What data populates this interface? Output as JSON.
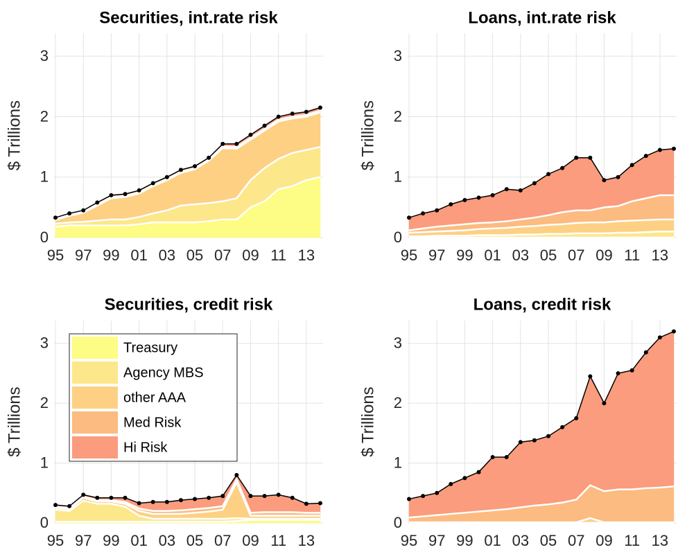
{
  "chart_data": [
    {
      "type": "stacked-area",
      "title": "Securities, int.rate risk",
      "y_label": "$ Trillions",
      "x": [
        1995,
        1996,
        1997,
        1998,
        1999,
        2000,
        2001,
        2002,
        2003,
        2004,
        2005,
        2006,
        2007,
        2008,
        2009,
        2010,
        2011,
        2012,
        2013,
        2014
      ],
      "xlim": [
        1994.9,
        2014.2
      ],
      "ylim": [
        0,
        3.38
      ],
      "xticks": [
        {
          "value": 1995,
          "label": "95"
        },
        {
          "value": 1997,
          "label": "97"
        },
        {
          "value": 1999,
          "label": "99"
        },
        {
          "value": 2001,
          "label": "01"
        },
        {
          "value": 2003,
          "label": "03"
        },
        {
          "value": 2005,
          "label": "05"
        },
        {
          "value": 2007,
          "label": "07"
        },
        {
          "value": 2009,
          "label": "09"
        },
        {
          "value": 2011,
          "label": "11"
        },
        {
          "value": 2013,
          "label": "13"
        }
      ],
      "yticks": [
        0,
        1,
        2,
        3
      ],
      "grid": true,
      "series": [
        {
          "color": "#fdfc84",
          "values": [
            0.18,
            0.2,
            0.2,
            0.2,
            0.2,
            0.2,
            0.22,
            0.25,
            0.25,
            0.25,
            0.25,
            0.27,
            0.3,
            0.3,
            0.5,
            0.6,
            0.8,
            0.85,
            0.95,
            1.0
          ]
        },
        {
          "color": "#fde78b",
          "values": [
            0.05,
            0.05,
            0.06,
            0.08,
            0.1,
            0.1,
            0.12,
            0.15,
            0.2,
            0.28,
            0.3,
            0.3,
            0.3,
            0.35,
            0.45,
            0.55,
            0.5,
            0.55,
            0.5,
            0.5
          ]
        },
        {
          "color": "#fdd084",
          "values": [
            0.06,
            0.11,
            0.15,
            0.25,
            0.35,
            0.37,
            0.39,
            0.45,
            0.5,
            0.54,
            0.58,
            0.7,
            0.88,
            0.82,
            0.67,
            0.62,
            0.62,
            0.57,
            0.55,
            0.57
          ]
        },
        {
          "color": "#fcbb81",
          "values": [
            0.02,
            0.02,
            0.02,
            0.02,
            0.02,
            0.02,
            0.02,
            0.02,
            0.02,
            0.02,
            0.02,
            0.02,
            0.03,
            0.03,
            0.03,
            0.03,
            0.03,
            0.03,
            0.03,
            0.03
          ]
        },
        {
          "color": "#fa9c7d",
          "values": [
            0.02,
            0.02,
            0.02,
            0.03,
            0.03,
            0.03,
            0.03,
            0.03,
            0.03,
            0.03,
            0.03,
            0.03,
            0.04,
            0.05,
            0.05,
            0.05,
            0.05,
            0.05,
            0.05,
            0.05
          ]
        }
      ]
    },
    {
      "type": "stacked-area",
      "title": "Loans, int.rate risk",
      "y_label": "$ Trillions",
      "x": [
        1995,
        1996,
        1997,
        1998,
        1999,
        2000,
        2001,
        2002,
        2003,
        2004,
        2005,
        2006,
        2007,
        2008,
        2009,
        2010,
        2011,
        2012,
        2013,
        2014
      ],
      "xlim": [
        1994.9,
        2014.2
      ],
      "ylim": [
        0,
        3.38
      ],
      "xticks": [
        {
          "value": 1995,
          "label": "95"
        },
        {
          "value": 1997,
          "label": "97"
        },
        {
          "value": 1999,
          "label": "99"
        },
        {
          "value": 2001,
          "label": "01"
        },
        {
          "value": 2003,
          "label": "03"
        },
        {
          "value": 2005,
          "label": "05"
        },
        {
          "value": 2007,
          "label": "07"
        },
        {
          "value": 2009,
          "label": "09"
        },
        {
          "value": 2011,
          "label": "11"
        },
        {
          "value": 2013,
          "label": "13"
        }
      ],
      "yticks": [
        0,
        1,
        2,
        3
      ],
      "grid": true,
      "series": [
        {
          "color": "#fdfc84",
          "values": [
            0,
            0,
            0,
            0,
            0,
            0,
            0,
            0,
            0,
            0,
            0,
            0,
            0,
            0,
            0,
            0,
            0,
            0,
            0,
            0
          ]
        },
        {
          "color": "#fde78b",
          "values": [
            0.02,
            0.02,
            0.03,
            0.03,
            0.03,
            0.04,
            0.04,
            0.04,
            0.05,
            0.05,
            0.06,
            0.06,
            0.07,
            0.07,
            0.07,
            0.08,
            0.08,
            0.09,
            0.1,
            0.1
          ]
        },
        {
          "color": "#fdd084",
          "values": [
            0.06,
            0.07,
            0.07,
            0.08,
            0.09,
            0.1,
            0.11,
            0.12,
            0.13,
            0.14,
            0.15,
            0.16,
            0.17,
            0.18,
            0.18,
            0.19,
            0.2,
            0.2,
            0.2,
            0.2
          ]
        },
        {
          "color": "#fcbb81",
          "values": [
            0.04,
            0.06,
            0.08,
            0.09,
            0.1,
            0.1,
            0.1,
            0.11,
            0.12,
            0.14,
            0.16,
            0.2,
            0.21,
            0.2,
            0.25,
            0.25,
            0.32,
            0.36,
            0.4,
            0.4
          ]
        },
        {
          "color": "#fa9c7d",
          "values": [
            0.21,
            0.25,
            0.27,
            0.35,
            0.4,
            0.42,
            0.45,
            0.53,
            0.48,
            0.57,
            0.68,
            0.73,
            0.87,
            0.87,
            0.45,
            0.48,
            0.6,
            0.7,
            0.75,
            0.77
          ]
        }
      ]
    },
    {
      "type": "stacked-area",
      "title": "Securities, credit risk",
      "y_label": "$ Trillions",
      "legend": "upper left",
      "x": [
        1995,
        1996,
        1997,
        1998,
        1999,
        2000,
        2001,
        2002,
        2003,
        2004,
        2005,
        2006,
        2007,
        2008,
        2009,
        2010,
        2011,
        2012,
        2013,
        2014
      ],
      "xlim": [
        1994.9,
        2014.2
      ],
      "ylim": [
        0,
        3.38
      ],
      "xticks": [
        {
          "value": 1995,
          "label": "95"
        },
        {
          "value": 1997,
          "label": "97"
        },
        {
          "value": 1999,
          "label": "99"
        },
        {
          "value": 2001,
          "label": "01"
        },
        {
          "value": 2003,
          "label": "03"
        },
        {
          "value": 2005,
          "label": "05"
        },
        {
          "value": 2007,
          "label": "07"
        },
        {
          "value": 2009,
          "label": "09"
        },
        {
          "value": 2011,
          "label": "11"
        },
        {
          "value": 2013,
          "label": "13"
        }
      ],
      "yticks": [
        0,
        1,
        2,
        3
      ],
      "grid": true,
      "series": [
        {
          "name": "Treasury",
          "color": "#fdfc84",
          "values": [
            0.02,
            0.02,
            0.02,
            0.02,
            0.02,
            0.02,
            0.02,
            0.02,
            0.02,
            0.02,
            0.02,
            0.02,
            0.02,
            0.03,
            0.05,
            0.05,
            0.05,
            0.05,
            0.05,
            0.05
          ]
        },
        {
          "name": "Agency MBS",
          "color": "#fde78b",
          "values": [
            0.2,
            0.18,
            0.35,
            0.3,
            0.3,
            0.25,
            0.1,
            0.05,
            0.05,
            0.05,
            0.05,
            0.05,
            0.05,
            0.05,
            0.02,
            0.02,
            0.02,
            0.02,
            0.02,
            0.02
          ]
        },
        {
          "name": "other AAA",
          "color": "#fdd084",
          "values": [
            0.03,
            0.03,
            0.05,
            0.04,
            0.04,
            0.05,
            0.08,
            0.08,
            0.08,
            0.08,
            0.1,
            0.12,
            0.15,
            0.6,
            0.05,
            0.05,
            0.05,
            0.05,
            0.05,
            0.05
          ]
        },
        {
          "name": "Med Risk",
          "color": "#fcbb81",
          "values": [
            0.02,
            0.02,
            0.02,
            0.02,
            0.02,
            0.03,
            0.04,
            0.05,
            0.05,
            0.06,
            0.06,
            0.06,
            0.06,
            0.05,
            0.05,
            0.06,
            0.06,
            0.06,
            0.05,
            0.05
          ]
        },
        {
          "name": "Hi Risk",
          "color": "#fa9c7d",
          "values": [
            0.03,
            0.03,
            0.03,
            0.04,
            0.04,
            0.07,
            0.09,
            0.15,
            0.15,
            0.17,
            0.17,
            0.17,
            0.17,
            0.07,
            0.28,
            0.27,
            0.29,
            0.24,
            0.15,
            0.16
          ]
        }
      ]
    },
    {
      "type": "stacked-area",
      "title": "Loans, credit risk",
      "y_label": "$ Trillions",
      "x": [
        1995,
        1996,
        1997,
        1998,
        1999,
        2000,
        2001,
        2002,
        2003,
        2004,
        2005,
        2006,
        2007,
        2008,
        2009,
        2010,
        2011,
        2012,
        2013,
        2014
      ],
      "xlim": [
        1994.9,
        2014.2
      ],
      "ylim": [
        0,
        3.38
      ],
      "xticks": [
        {
          "value": 1995,
          "label": "95"
        },
        {
          "value": 1997,
          "label": "97"
        },
        {
          "value": 1999,
          "label": "99"
        },
        {
          "value": 2001,
          "label": "01"
        },
        {
          "value": 2003,
          "label": "03"
        },
        {
          "value": 2005,
          "label": "05"
        },
        {
          "value": 2007,
          "label": "07"
        },
        {
          "value": 2009,
          "label": "09"
        },
        {
          "value": 2011,
          "label": "11"
        },
        {
          "value": 2013,
          "label": "13"
        }
      ],
      "yticks": [
        0,
        1,
        2,
        3
      ],
      "grid": true,
      "series": [
        {
          "color": "#fdfc84",
          "values": [
            0,
            0,
            0,
            0,
            0,
            0,
            0,
            0,
            0,
            0,
            0,
            0,
            0,
            0,
            0,
            0,
            0,
            0,
            0,
            0
          ]
        },
        {
          "color": "#fde78b",
          "values": [
            0,
            0,
            0,
            0,
            0,
            0,
            0,
            0,
            0,
            0,
            0,
            0,
            0,
            0,
            0,
            0,
            0,
            0,
            0,
            0
          ]
        },
        {
          "color": "#fdd084",
          "values": [
            0.01,
            0.01,
            0.01,
            0.01,
            0.01,
            0.01,
            0.01,
            0.01,
            0.01,
            0.01,
            0.01,
            0.01,
            0.01,
            0.08,
            0.01,
            0.01,
            0.01,
            0.01,
            0.01,
            0.01
          ]
        },
        {
          "color": "#fcbb81",
          "values": [
            0.08,
            0.1,
            0.12,
            0.14,
            0.16,
            0.18,
            0.2,
            0.22,
            0.25,
            0.28,
            0.3,
            0.33,
            0.38,
            0.55,
            0.52,
            0.55,
            0.55,
            0.57,
            0.58,
            0.6
          ]
        },
        {
          "color": "#fa9c7d",
          "values": [
            0.31,
            0.34,
            0.37,
            0.5,
            0.58,
            0.66,
            0.89,
            0.87,
            1.09,
            1.09,
            1.14,
            1.26,
            1.36,
            1.82,
            1.47,
            1.94,
            1.99,
            2.27,
            2.51,
            2.59
          ]
        }
      ]
    }
  ]
}
